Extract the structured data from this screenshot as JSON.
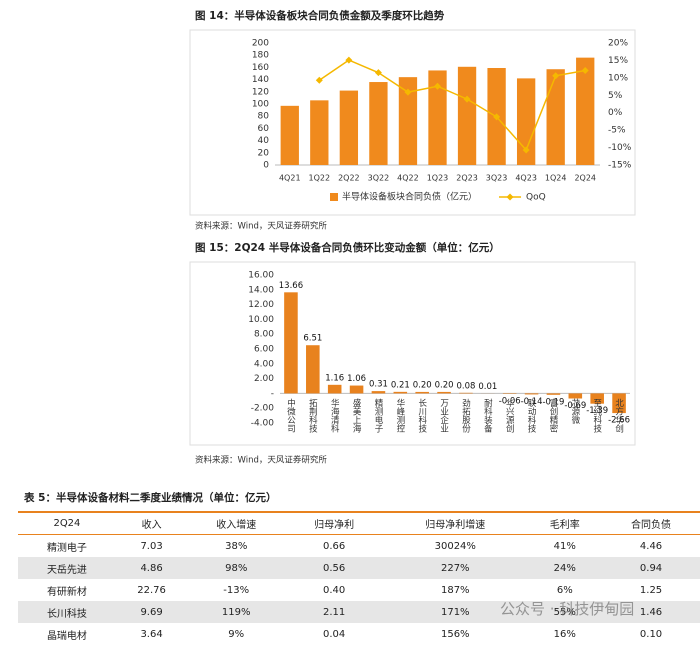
{
  "chart_data": [
    {
      "type": "bar",
      "title": "图 14：半导体设备板块合同负债金额及季度环比趋势",
      "categories": [
        "4Q21",
        "1Q22",
        "2Q22",
        "3Q22",
        "4Q22",
        "1Q23",
        "2Q23",
        "3Q23",
        "4Q23",
        "1Q24",
        "2Q24"
      ],
      "series": [
        {
          "name": "半导体设备板块合同负债（亿元）",
          "color": "#f08a1d",
          "values": [
            97,
            106,
            122,
            136,
            144,
            155,
            161,
            159,
            142,
            157,
            176
          ]
        },
        {
          "name": "QoQ",
          "color": "#f5b800",
          "axis": "y2",
          "values": [
            null,
            9.3,
            15.1,
            11.5,
            5.9,
            7.6,
            3.9,
            -1.2,
            -10.7,
            10.6,
            12.1
          ]
        }
      ],
      "ylim": [
        0,
        200
      ],
      "yticks": [
        0,
        20,
        40,
        60,
        80,
        100,
        120,
        140,
        160,
        180,
        200
      ],
      "y2lim": [
        -15,
        20
      ],
      "y2ticks": [
        {
          "value": -15,
          "label": "-15%"
        },
        {
          "value": -10,
          "label": "-10%"
        },
        {
          "value": -5,
          "label": "-5%"
        },
        {
          "value": 0,
          "label": "0%"
        },
        {
          "value": 5,
          "label": "5%"
        },
        {
          "value": 10,
          "label": "10%"
        },
        {
          "value": 15,
          "label": "15%"
        },
        {
          "value": 20,
          "label": "20%"
        }
      ],
      "source": "资料来源：Wind，天风证券研究所"
    },
    {
      "type": "bar",
      "title": "图 15：2Q24 半导体设备合同负债环比变动金额（单位：亿元）",
      "categories": [
        "中微公司",
        "拓荆科技",
        "华海清科",
        "盛美上海",
        "精测电子",
        "华峰测控",
        "长川科技",
        "万业企业",
        "劲拓股份",
        "耐科装备",
        "华兴源创",
        "联动科技",
        "富创精密",
        "芯源微",
        "至纯科技",
        "北方华创"
      ],
      "values": [
        13.66,
        6.51,
        1.16,
        1.06,
        0.31,
        0.21,
        0.2,
        0.2,
        0.08,
        0.01,
        -0.06,
        -0.14,
        -0.19,
        -0.69,
        -1.39,
        -2.66
      ],
      "value_labels": [
        "13.66",
        "6.51",
        "1.16",
        "1.06",
        "0.31",
        "0.21",
        "0.20",
        "0.20",
        "0.08",
        "0.01",
        "-0.06",
        "-0.14",
        "-0.19",
        "-0.69",
        "-1.39",
        "-2.66"
      ],
      "color": "#e8821e",
      "ylim": [
        -4,
        16
      ],
      "yticks": [
        {
          "value": -4,
          "label": "-4.00"
        },
        {
          "value": -2,
          "label": "-2.00"
        },
        {
          "value": 0,
          "label": "-"
        },
        {
          "value": 2,
          "label": "2.00"
        },
        {
          "value": 4,
          "label": "4.00"
        },
        {
          "value": 6,
          "label": "6.00"
        },
        {
          "value": 8,
          "label": "8.00"
        },
        {
          "value": 10,
          "label": "10.00"
        },
        {
          "value": 12,
          "label": "12.00"
        },
        {
          "value": 14,
          "label": "14.00"
        },
        {
          "value": 16,
          "label": "16.00"
        }
      ],
      "source": "资料来源：Wind，天风证券研究所"
    }
  ],
  "table": {
    "title": "表 5：半导体设备材料二季度业绩情况（单位：亿元）",
    "columns": [
      "2Q24",
      "收入",
      "收入增速",
      "归母净利",
      "归母净利增速",
      "毛利率",
      "合同负债"
    ],
    "rows": [
      [
        "精测电子",
        "7.03",
        "38%",
        "0.66",
        "30024%",
        "41%",
        "4.46"
      ],
      [
        "天岳先进",
        "4.86",
        "98%",
        "0.56",
        "227%",
        "24%",
        "0.94"
      ],
      [
        "有研新材",
        "22.76",
        "-13%",
        "0.40",
        "187%",
        "6%",
        "1.25"
      ],
      [
        "长川科技",
        "9.69",
        "119%",
        "2.11",
        "171%",
        "55%",
        "1.46"
      ],
      [
        "晶瑞电材",
        "3.64",
        "9%",
        "0.04",
        "156%",
        "16%",
        "0.10"
      ]
    ]
  },
  "watermark": "公众号 · 科技伊甸园"
}
